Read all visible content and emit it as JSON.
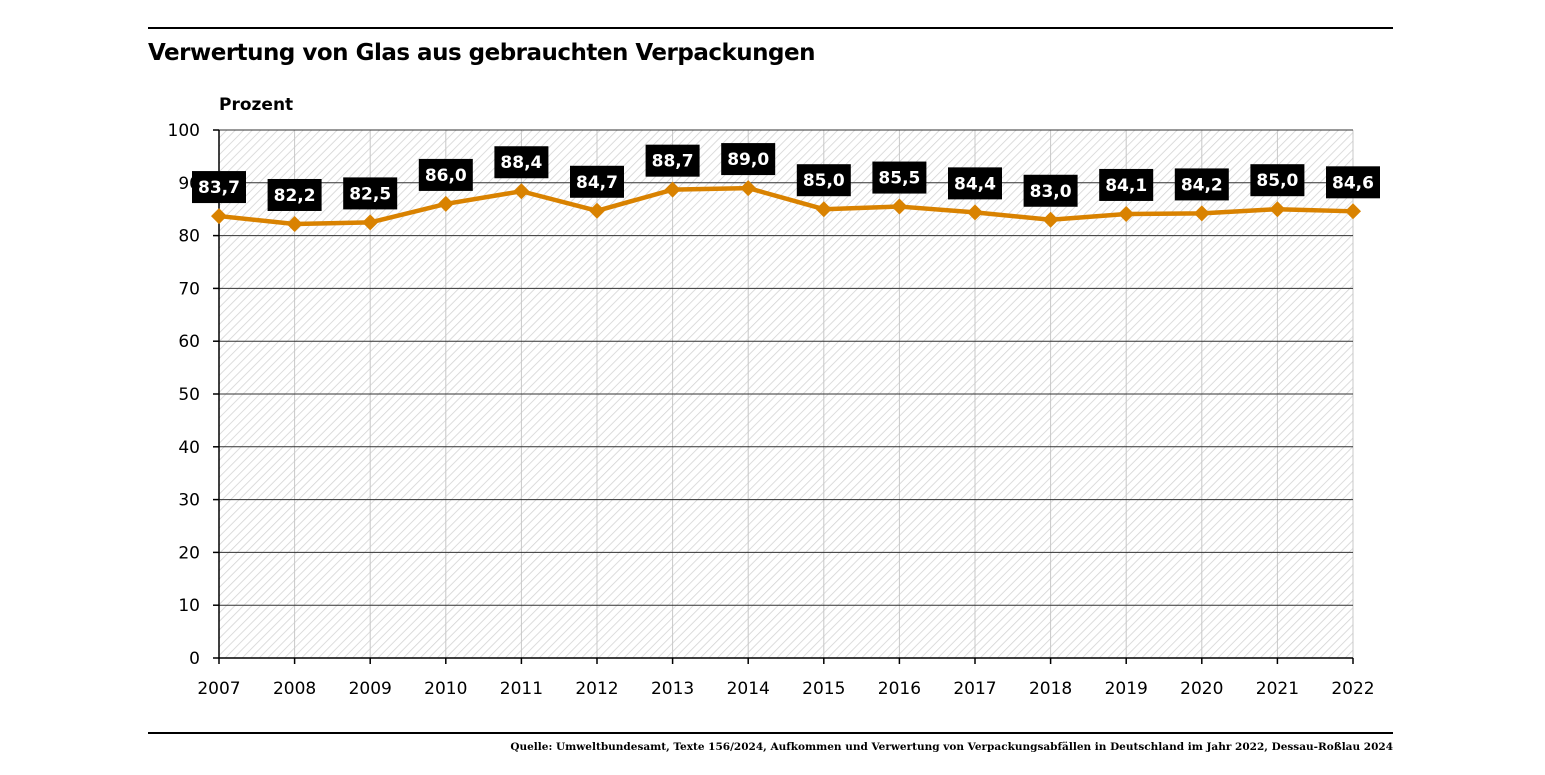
{
  "chart_data": {
    "type": "line",
    "title": "Verwertung von Glas aus gebrauchten Verpackungen",
    "ylabel": "Prozent",
    "xlabel": "",
    "ylim": [
      0,
      100
    ],
    "yticks": [
      0,
      10,
      20,
      30,
      40,
      50,
      60,
      70,
      80,
      90,
      100
    ],
    "categories": [
      "2007",
      "2008",
      "2009",
      "2010",
      "2011",
      "2012",
      "2013",
      "2014",
      "2015",
      "2016",
      "2017",
      "2018",
      "2019",
      "2020",
      "2021",
      "2022"
    ],
    "series": [
      {
        "values": [
          83.7,
          82.2,
          82.5,
          86.0,
          88.4,
          84.7,
          88.7,
          89.0,
          85.0,
          85.5,
          84.4,
          83.0,
          84.1,
          84.2,
          85.0,
          84.6
        ],
        "data_labels": [
          "83,7",
          "82,2",
          "82,5",
          "86,0",
          "88,4",
          "84,7",
          "88,7",
          "89,0",
          "85,0",
          "85,5",
          "84,4",
          "83,0",
          "84,1",
          "84,2",
          "85,0",
          "84,6"
        ],
        "color": "#d98200",
        "marker": "diamond"
      }
    ],
    "grid": true,
    "background": "diagonal hatch"
  },
  "source": "Quelle: Umweltbundesamt, Texte 156/2024, Aufkommen und Verwertung von Verpackungsabfällen in Deutschland im Jahr 2022, Dessau-Roßlau 2024"
}
